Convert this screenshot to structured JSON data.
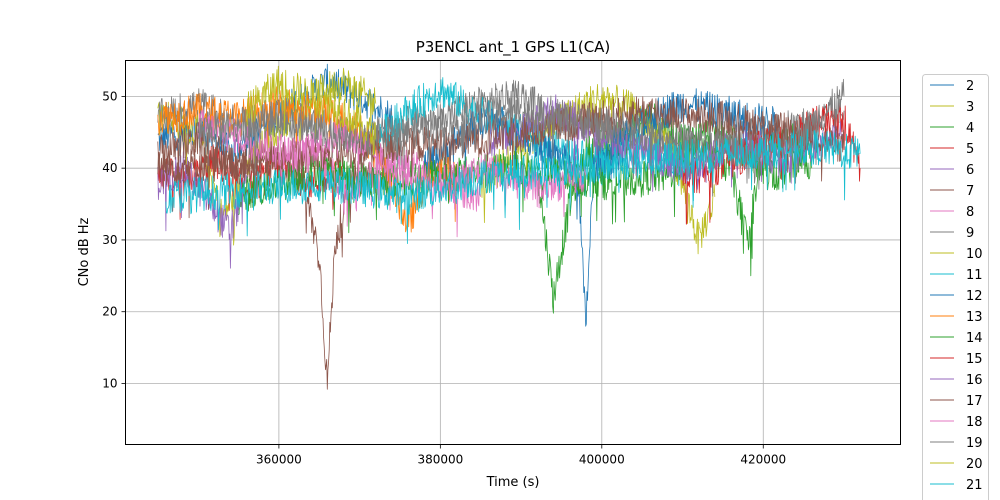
{
  "chart_data": {
    "type": "line",
    "title": "P3ENCL ant_1 GPS L1(CA)",
    "xlabel": "Time (s)",
    "ylabel": "CNo dB Hz",
    "xlim": [
      341000,
      437000
    ],
    "ylim": [
      1.5,
      55
    ],
    "xticks": [
      360000,
      380000,
      400000,
      420000
    ],
    "xtick_labels": [
      "360000",
      "380000",
      "400000",
      "420000"
    ],
    "yticks": [
      10,
      20,
      30,
      40,
      50
    ],
    "ytick_labels": [
      "10",
      "20",
      "30",
      "40",
      "50"
    ],
    "grid": true,
    "legend_position": "right",
    "series": [
      {
        "name": "2",
        "color": "#1f77b4",
        "x": [
          345000,
          350000,
          354000,
          358000,
          362000,
          366000,
          370000,
          374000
        ],
        "y": [
          44,
          46,
          42,
          46,
          49,
          52,
          50,
          47
        ]
      },
      {
        "name": "3",
        "color": "#bcbd22",
        "x": [
          345000,
          350000,
          353000,
          356000,
          360000,
          364000,
          368000,
          372000
        ],
        "y": [
          48,
          45,
          33,
          40,
          46,
          50,
          52,
          49
        ]
      },
      {
        "name": "4",
        "color": "#2ca02c",
        "x": [
          392000,
          394000,
          396000,
          398000,
          402000,
          406000,
          410000,
          414000,
          418000,
          422000,
          426000
        ],
        "y": [
          40,
          22,
          35,
          42,
          44,
          47,
          44,
          45,
          42,
          39,
          43
        ]
      },
      {
        "name": "5",
        "color": "#d62728",
        "x": [
          345000,
          348000,
          352000,
          356000,
          360000,
          364000,
          368000
        ],
        "y": [
          40,
          38,
          41,
          37,
          40,
          38,
          39
        ]
      },
      {
        "name": "6",
        "color": "#9467bd",
        "x": [
          345000,
          348000,
          351000,
          354000,
          356000
        ],
        "y": [
          38,
          40,
          36,
          31,
          39
        ]
      },
      {
        "name": "7",
        "color": "#8c564b",
        "x": [
          345000,
          350000,
          355000,
          360000,
          363000,
          365000,
          366000,
          367000,
          369000,
          372000,
          374000
        ],
        "y": [
          42,
          44,
          40,
          41,
          38,
          28,
          10,
          30,
          38,
          40,
          42
        ]
      },
      {
        "name": "8",
        "color": "#e377c2",
        "x": [
          360000,
          364000,
          368000,
          372000,
          376000,
          380000,
          385000
        ],
        "y": [
          40,
          43,
          37,
          39,
          41,
          38,
          36
        ]
      },
      {
        "name": "9",
        "color": "#7f7f7f",
        "x": [
          345000,
          350000,
          355000,
          360000,
          365000,
          370000,
          375000,
          380000,
          385000,
          390000,
          395000,
          400000,
          405000,
          410000,
          415000,
          420000,
          425000,
          430000
        ],
        "y": [
          47,
          49,
          46,
          48,
          46,
          44,
          46,
          47,
          49,
          50,
          47,
          46,
          44,
          42,
          44,
          45,
          46,
          48
        ]
      },
      {
        "name": "10",
        "color": "#bcbd22",
        "x": [
          385000,
          390000,
          395000,
          400000,
          404000,
          408000,
          410000,
          412000,
          414000
        ],
        "y": [
          38,
          43,
          47,
          50,
          48,
          44,
          38,
          30,
          36
        ]
      },
      {
        "name": "11",
        "color": "#17becf",
        "x": [
          372000,
          376000,
          380000,
          384000,
          388000,
          392000,
          396000,
          400000,
          404000,
          408000,
          412000
        ],
        "y": [
          44,
          48,
          51,
          48,
          46,
          44,
          42,
          41,
          43,
          42,
          40
        ]
      },
      {
        "name": "12",
        "color": "#1f77b4",
        "x": [
          378000,
          382000,
          386000,
          390000,
          394000,
          397000,
          398000,
          399000,
          402000,
          406000,
          410000,
          414000,
          418000,
          422000
        ],
        "y": [
          40,
          44,
          47,
          45,
          42,
          40,
          18,
          40,
          44,
          47,
          49,
          48,
          47,
          46
        ]
      },
      {
        "name": "13",
        "color": "#ff7f0e",
        "x": [
          345000,
          350000,
          355000,
          360000,
          365000,
          370000,
          374000,
          376000,
          378000,
          380000,
          382000
        ],
        "y": [
          47,
          48,
          47,
          49,
          48,
          46,
          38,
          32,
          38,
          40,
          39
        ]
      },
      {
        "name": "14",
        "color": "#2ca02c",
        "x": [
          355000,
          360000,
          365000,
          372000,
          380000,
          390000,
          400000,
          408000,
          412000,
          416000,
          418000,
          420000,
          424000,
          426000
        ],
        "y": [
          36,
          38,
          40,
          38,
          39,
          40,
          38,
          39,
          43,
          40,
          30,
          42,
          44,
          40
        ]
      },
      {
        "name": "15",
        "color": "#d62728",
        "x": [
          410000,
          414000,
          418000,
          422000,
          426000,
          430000,
          432000
        ],
        "y": [
          38,
          40,
          42,
          44,
          46,
          47,
          40
        ]
      },
      {
        "name": "16",
        "color": "#9467bd",
        "x": [
          386000,
          390000,
          394000,
          398000,
          402000,
          406000,
          410000,
          414000,
          418000,
          422000,
          426000,
          430000
        ],
        "y": [
          44,
          45,
          48,
          46,
          43,
          42,
          40,
          42,
          44,
          41,
          43,
          45
        ]
      },
      {
        "name": "17",
        "color": "#8c564b",
        "x": [
          345000,
          355000,
          365000,
          375000,
          385000,
          395000,
          405000,
          415000,
          425000,
          430000
        ],
        "y": [
          40,
          41,
          42,
          43,
          44,
          46,
          48,
          47,
          45,
          43
        ]
      },
      {
        "name": "18",
        "color": "#e377c2",
        "x": [
          350000,
          356000,
          362000,
          368000,
          374000,
          380000,
          386000,
          392000,
          398000
        ],
        "y": [
          46,
          44,
          42,
          45,
          40,
          38,
          40,
          37,
          39
        ]
      },
      {
        "name": "19",
        "color": "#7f7f7f",
        "x": [
          350000,
          360000,
          370000,
          380000,
          390000,
          400000,
          410000,
          420000,
          425000,
          430000
        ],
        "y": [
          45,
          47,
          44,
          46,
          48,
          46,
          44,
          42,
          45,
          50
        ]
      },
      {
        "name": "20",
        "color": "#bcbd22",
        "x": [
          356000,
          360000,
          364000,
          368000,
          370000,
          372000
        ],
        "y": [
          48,
          52,
          50,
          48,
          46,
          44
        ]
      },
      {
        "name": "21",
        "color": "#17becf",
        "x": [
          346000,
          356000,
          366000,
          376000,
          386000,
          396000,
          406000,
          416000,
          426000,
          432000
        ],
        "y": [
          36,
          37,
          38,
          36,
          39,
          40,
          41,
          42,
          43,
          42
        ]
      }
    ]
  }
}
